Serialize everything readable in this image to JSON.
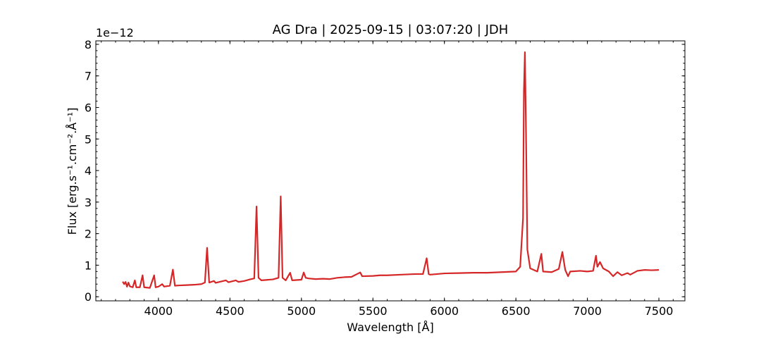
{
  "chart_data": {
    "type": "line",
    "title": "AG Dra | 2025-09-15 | 03:07:20 | JDH",
    "xlabel": "Wavelength [Å]",
    "ylabel": "Flux [erg.s⁻¹.cm⁻².Å⁻¹]",
    "y_offset_label": "1e−12",
    "xlim": [
      3562,
      7682
    ],
    "ylim": [
      -0.13,
      8.11
    ],
    "xticks": [
      4000,
      4500,
      5000,
      5500,
      6000,
      6500,
      7000,
      7500
    ],
    "yticks": [
      0,
      1,
      2,
      3,
      4,
      5,
      6,
      7,
      8
    ],
    "grid": false,
    "x": [
      3750,
      3760,
      3770,
      3780,
      3790,
      3800,
      3820,
      3835,
      3845,
      3870,
      3889,
      3900,
      3940,
      3970,
      3980,
      4000,
      4026,
      4040,
      4080,
      4101,
      4115,
      4150,
      4200,
      4250,
      4300,
      4325,
      4340,
      4355,
      4388,
      4400,
      4471,
      4490,
      4541,
      4560,
      4600,
      4640,
      4670,
      4686,
      4700,
      4720,
      4800,
      4840,
      4855,
      4868,
      4890,
      4921,
      4935,
      5000,
      5016,
      5030,
      5050,
      5100,
      5150,
      5200,
      5250,
      5300,
      5350,
      5411,
      5425,
      5500,
      5550,
      5600,
      5700,
      5800,
      5850,
      5876,
      5890,
      5900,
      6000,
      6100,
      6200,
      6300,
      6400,
      6500,
      6530,
      6550,
      6556,
      6563,
      6570,
      6580,
      6600,
      6650,
      6678,
      6690,
      6750,
      6800,
      6825,
      6845,
      6865,
      6880,
      6950,
      7000,
      7040,
      7060,
      7070,
      7088,
      7110,
      7150,
      7180,
      7210,
      7240,
      7280,
      7300,
      7350,
      7400,
      7450,
      7500
    ],
    "series": [
      {
        "name": "AG Dra",
        "color": "#d62728",
        "values": [
          0.48,
          0.4,
          0.47,
          0.32,
          0.45,
          0.33,
          0.3,
          0.52,
          0.3,
          0.3,
          0.68,
          0.3,
          0.28,
          0.68,
          0.3,
          0.32,
          0.4,
          0.32,
          0.35,
          0.86,
          0.35,
          0.36,
          0.37,
          0.38,
          0.4,
          0.45,
          1.55,
          0.45,
          0.5,
          0.44,
          0.52,
          0.46,
          0.52,
          0.47,
          0.5,
          0.55,
          0.58,
          2.86,
          0.6,
          0.52,
          0.55,
          0.6,
          3.18,
          0.6,
          0.52,
          0.76,
          0.52,
          0.54,
          0.77,
          0.6,
          0.58,
          0.56,
          0.57,
          0.56,
          0.6,
          0.62,
          0.63,
          0.77,
          0.65,
          0.66,
          0.68,
          0.68,
          0.7,
          0.72,
          0.72,
          1.22,
          0.72,
          0.7,
          0.74,
          0.75,
          0.76,
          0.76,
          0.78,
          0.8,
          0.95,
          2.5,
          6.5,
          7.75,
          5.5,
          1.5,
          0.9,
          0.8,
          1.36,
          0.8,
          0.78,
          0.88,
          1.42,
          0.85,
          0.65,
          0.8,
          0.82,
          0.8,
          0.82,
          1.3,
          0.95,
          1.1,
          0.9,
          0.8,
          0.65,
          0.78,
          0.68,
          0.75,
          0.7,
          0.82,
          0.85,
          0.84,
          0.85
        ]
      }
    ]
  }
}
